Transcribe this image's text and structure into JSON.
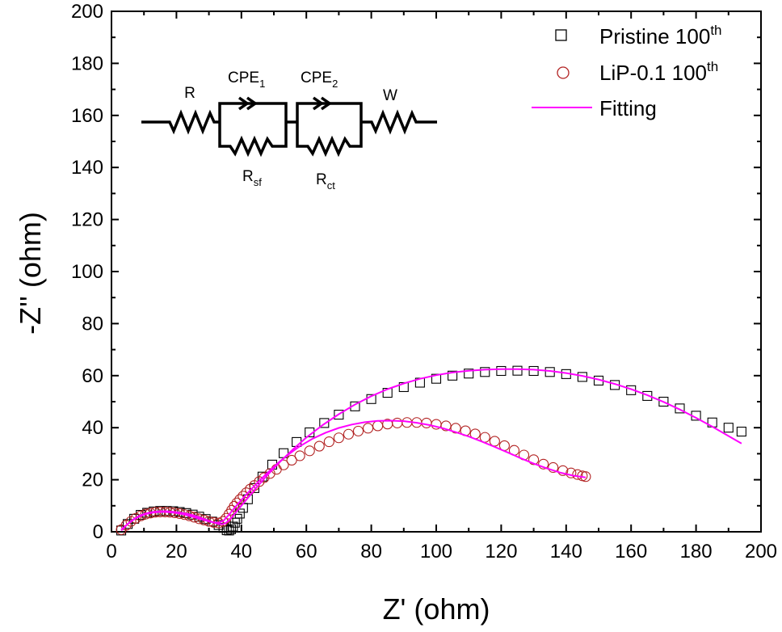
{
  "chart_data": {
    "type": "scatter",
    "xlabel": "Z' (ohm)",
    "ylabel": "-Z'' (ohm)",
    "xlim": [
      0,
      200
    ],
    "ylim": [
      0,
      200
    ],
    "x_ticks": [
      0,
      20,
      40,
      60,
      80,
      100,
      120,
      140,
      160,
      180,
      200
    ],
    "y_ticks": [
      0,
      20,
      40,
      60,
      80,
      100,
      120,
      140,
      160,
      180,
      200
    ],
    "x_tick_labels": [
      "0",
      "20",
      "40",
      "60",
      "80",
      "100",
      "120",
      "140",
      "160",
      "180",
      "200"
    ],
    "y_tick_labels": [
      "0",
      "20",
      "40",
      "60",
      "80",
      "100",
      "120",
      "140",
      "160",
      "180",
      "200"
    ],
    "grid": false,
    "legend_position": "top-right",
    "series": [
      {
        "name": "Pristine 100",
        "name_sup": "th",
        "marker": "square",
        "color": "#000000",
        "x": [
          3,
          5,
          7,
          9,
          11,
          13,
          15,
          17,
          19,
          21,
          23,
          25,
          27,
          29,
          31,
          33,
          34.5,
          35.5,
          36.2,
          36.8,
          37.4,
          38,
          38.7,
          39.5,
          40.5,
          42,
          44,
          46.5,
          49.5,
          53,
          57,
          61,
          65.5,
          70,
          75,
          80,
          85,
          90,
          95,
          100,
          105,
          110,
          115,
          120,
          125,
          130,
          135,
          140,
          145,
          150,
          155,
          160,
          165,
          170,
          175,
          180,
          185,
          190,
          194
        ],
        "y": [
          0.5,
          3,
          5,
          6.5,
          7.3,
          7.8,
          8,
          8,
          7.9,
          7.6,
          7.2,
          6.6,
          5.8,
          4.9,
          3.9,
          2.6,
          1.5,
          0.6,
          0.5,
          1,
          2,
          3.5,
          5,
          7,
          9.2,
          12.5,
          16.8,
          21.2,
          25.8,
          30.2,
          34.5,
          38.2,
          41.8,
          45,
          48.2,
          51,
          53.4,
          55.6,
          57.3,
          58.8,
          60,
          60.8,
          61.4,
          61.8,
          61.9,
          61.8,
          61.4,
          60.6,
          59.5,
          58.1,
          56.4,
          54.4,
          52.2,
          50,
          47.4,
          44.6,
          42,
          40,
          38.5
        ]
      },
      {
        "name": "LiP-0.1 100",
        "name_sup": "th",
        "marker": "circle",
        "color": "#b22222",
        "x": [
          3,
          4.5,
          6,
          7.5,
          9,
          10.5,
          12,
          13.5,
          15,
          16.5,
          18,
          19.5,
          21,
          22.5,
          24,
          25.5,
          27,
          28.5,
          30,
          31.5,
          33,
          34.3,
          35.3,
          36.2,
          37,
          37.8,
          38.6,
          39.5,
          40.5,
          41.5,
          42.7,
          44,
          45.5,
          47,
          48.8,
          50.8,
          53,
          55.5,
          58,
          61,
          64,
          67,
          70,
          73,
          76,
          79,
          82,
          85,
          88,
          91,
          94,
          97,
          100,
          103,
          106,
          109,
          112,
          115,
          118,
          121,
          124,
          127,
          130,
          133,
          136,
          139,
          141.5,
          143.5,
          145,
          146
        ],
        "y": [
          0.8,
          2.5,
          4,
          5.2,
          6.1,
          6.8,
          7.2,
          7.5,
          7.6,
          7.6,
          7.5,
          7.3,
          7,
          6.6,
          6.1,
          5.6,
          5,
          4.5,
          4,
          3.6,
          3.4,
          4,
          5.2,
          6.8,
          8.3,
          9.8,
          11.1,
          12.4,
          13.7,
          15,
          16.4,
          17.8,
          19.3,
          20.8,
          22.4,
          24,
          25.7,
          27.5,
          29.2,
          31.1,
          32.9,
          34.6,
          36.1,
          37.5,
          38.7,
          39.8,
          40.7,
          41.4,
          41.8,
          42,
          42,
          41.8,
          41.3,
          40.7,
          39.8,
          38.8,
          37.6,
          36.3,
          34.8,
          33.1,
          31.3,
          29.5,
          27.7,
          26,
          24.7,
          23.5,
          22.6,
          22,
          21.5,
          21.2
        ]
      },
      {
        "name": "Fitting",
        "marker": "line",
        "color": "#ff00ff",
        "x": [
          3,
          5,
          7,
          9,
          11,
          13,
          15,
          17,
          19,
          21,
          23,
          25,
          27,
          29,
          31,
          33,
          34,
          35,
          36,
          37,
          38,
          40,
          42,
          45,
          48,
          52,
          56,
          60,
          65,
          70,
          75,
          80,
          85,
          90,
          95,
          100,
          105,
          110,
          115,
          120,
          125,
          130,
          135,
          140,
          145,
          150,
          155,
          160,
          165,
          170,
          175,
          180,
          185,
          190,
          194
        ],
        "y": [
          0.5,
          3,
          5,
          6.4,
          7.2,
          7.7,
          7.9,
          7.9,
          7.7,
          7.4,
          7,
          6.4,
          5.6,
          4.7,
          3.8,
          3,
          2.9,
          3.2,
          4.2,
          5.5,
          7,
          10,
          13,
          17.5,
          21.8,
          27,
          31.8,
          36.2,
          41,
          45.2,
          48.9,
          52.1,
          54.8,
          57,
          58.8,
          60.2,
          61.2,
          61.9,
          62.3,
          62.5,
          62.5,
          62.3,
          61.8,
          61,
          59.9,
          58.5,
          56.8,
          54.8,
          52.5,
          49.9,
          47,
          43.8,
          40.4,
          36.8,
          33.9
        ]
      },
      {
        "name": "",
        "marker": "line",
        "color": "#ff00ff",
        "x": [
          3,
          4.5,
          6,
          7.5,
          9,
          10.5,
          12,
          13.5,
          15,
          16.5,
          18,
          19.5,
          21,
          22.5,
          24,
          25.5,
          27,
          28.5,
          30,
          31.5,
          33,
          34.5,
          36,
          37.5,
          39,
          41,
          43,
          46,
          49,
          52,
          55,
          58,
          62,
          66,
          70,
          74,
          78,
          82,
          86,
          90,
          94,
          98,
          102,
          106,
          110,
          114,
          118,
          122,
          126,
          130,
          134,
          138,
          142,
          146
        ],
        "y": [
          0.8,
          2.5,
          4,
          5.2,
          6.1,
          6.8,
          7.2,
          7.5,
          7.6,
          7.6,
          7.5,
          7.3,
          7,
          6.6,
          6.1,
          5.6,
          5,
          4.5,
          4,
          3.6,
          3.5,
          4.3,
          6.3,
          8.6,
          10.8,
          13.6,
          16.3,
          20.2,
          23.8,
          27.2,
          30.2,
          32.9,
          35.8,
          38.1,
          39.9,
          41.2,
          42.1,
          42.6,
          42.7,
          42.5,
          41.9,
          41,
          39.8,
          38.3,
          36.6,
          34.7,
          32.6,
          30.5,
          28.3,
          26.2,
          24.4,
          22.8,
          21.6,
          20.9
        ]
      }
    ],
    "circuit": {
      "labels": [
        {
          "base": "R",
          "sub": ""
        },
        {
          "base": "CPE",
          "sub": "1"
        },
        {
          "base": "CPE",
          "sub": "2"
        },
        {
          "base": "W",
          "sub": ""
        },
        {
          "base": "R",
          "sub": "sf"
        },
        {
          "base": "R",
          "sub": "ct"
        }
      ]
    }
  }
}
